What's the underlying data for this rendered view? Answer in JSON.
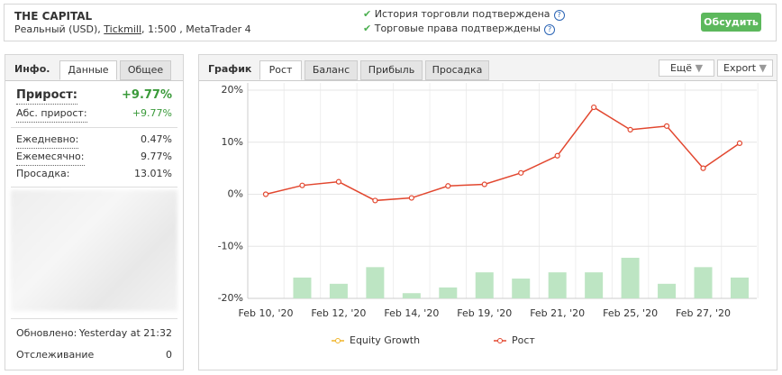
{
  "header": {
    "title": "THE CAPITAL",
    "account_prefix": "Реальный (USD),",
    "broker": "Tickmill",
    "account_suffix": ", 1:500 , MetaTrader 4",
    "verifications": [
      "История торговли подтверждена",
      "Торговые права подтверждены"
    ],
    "button": "Обсудить"
  },
  "info_panel": {
    "title": "Инфо.",
    "tabs": [
      "Данные",
      "Общее"
    ],
    "growth": {
      "label": "Прирост:",
      "value": "+9.77%"
    },
    "rows": [
      [
        "Абс. прирост:",
        "+9.77%"
      ],
      [
        "Ежедневно:",
        "0.47%"
      ],
      [
        "Ежемесячно:",
        "9.77%"
      ],
      [
        "Просадка:",
        "13.01%"
      ]
    ],
    "footer_rows": [
      [
        "Обновлено:",
        "Yesterday at 21:32"
      ],
      [
        "Отслеживание",
        "0"
      ]
    ]
  },
  "chart_panel": {
    "title": "График",
    "tabs": [
      "Рост",
      "Баланс",
      "Прибыль",
      "Просадка"
    ],
    "buttons": [
      "Ещё",
      "Export"
    ]
  },
  "chart_data": {
    "type": "line",
    "categories": [
      "Feb 10, '20",
      null,
      "Feb 12, '20",
      null,
      "Feb 14, '20",
      null,
      "Feb 19, '20",
      null,
      "Feb 21, '20",
      null,
      "Feb 25, '20",
      null,
      "Feb 27, '20",
      null
    ],
    "series": [
      {
        "name": "Equity Growth",
        "color": "#f0b429",
        "values": [
          null,
          null,
          null,
          null,
          null,
          null,
          null,
          null,
          null,
          null,
          null,
          null,
          null,
          null
        ]
      },
      {
        "name": "Рост",
        "color": "#e2472f",
        "values": [
          0,
          1.7,
          2.4,
          -1.2,
          -0.7,
          1.6,
          1.9,
          4.1,
          7.4,
          16.7,
          12.4,
          13.1,
          5.0,
          9.8
        ]
      },
      {
        "type": "bar",
        "color": "#bde5c3",
        "values": [
          null,
          -16.0,
          -17.2,
          -14.0,
          -19.0,
          -17.9,
          -15.0,
          -16.2,
          -15.0,
          -15.0,
          -12.2,
          -17.2,
          -14.0,
          -16.0
        ]
      }
    ],
    "ylim": [
      -20,
      20
    ],
    "yticks": [
      {
        "value": 20,
        "label": "20%"
      },
      {
        "value": 10,
        "label": "10%"
      },
      {
        "value": 0,
        "label": "0%"
      },
      {
        "value": -10,
        "label": "-10%"
      },
      {
        "value": -20,
        "label": "-20%"
      }
    ],
    "grid": true
  }
}
